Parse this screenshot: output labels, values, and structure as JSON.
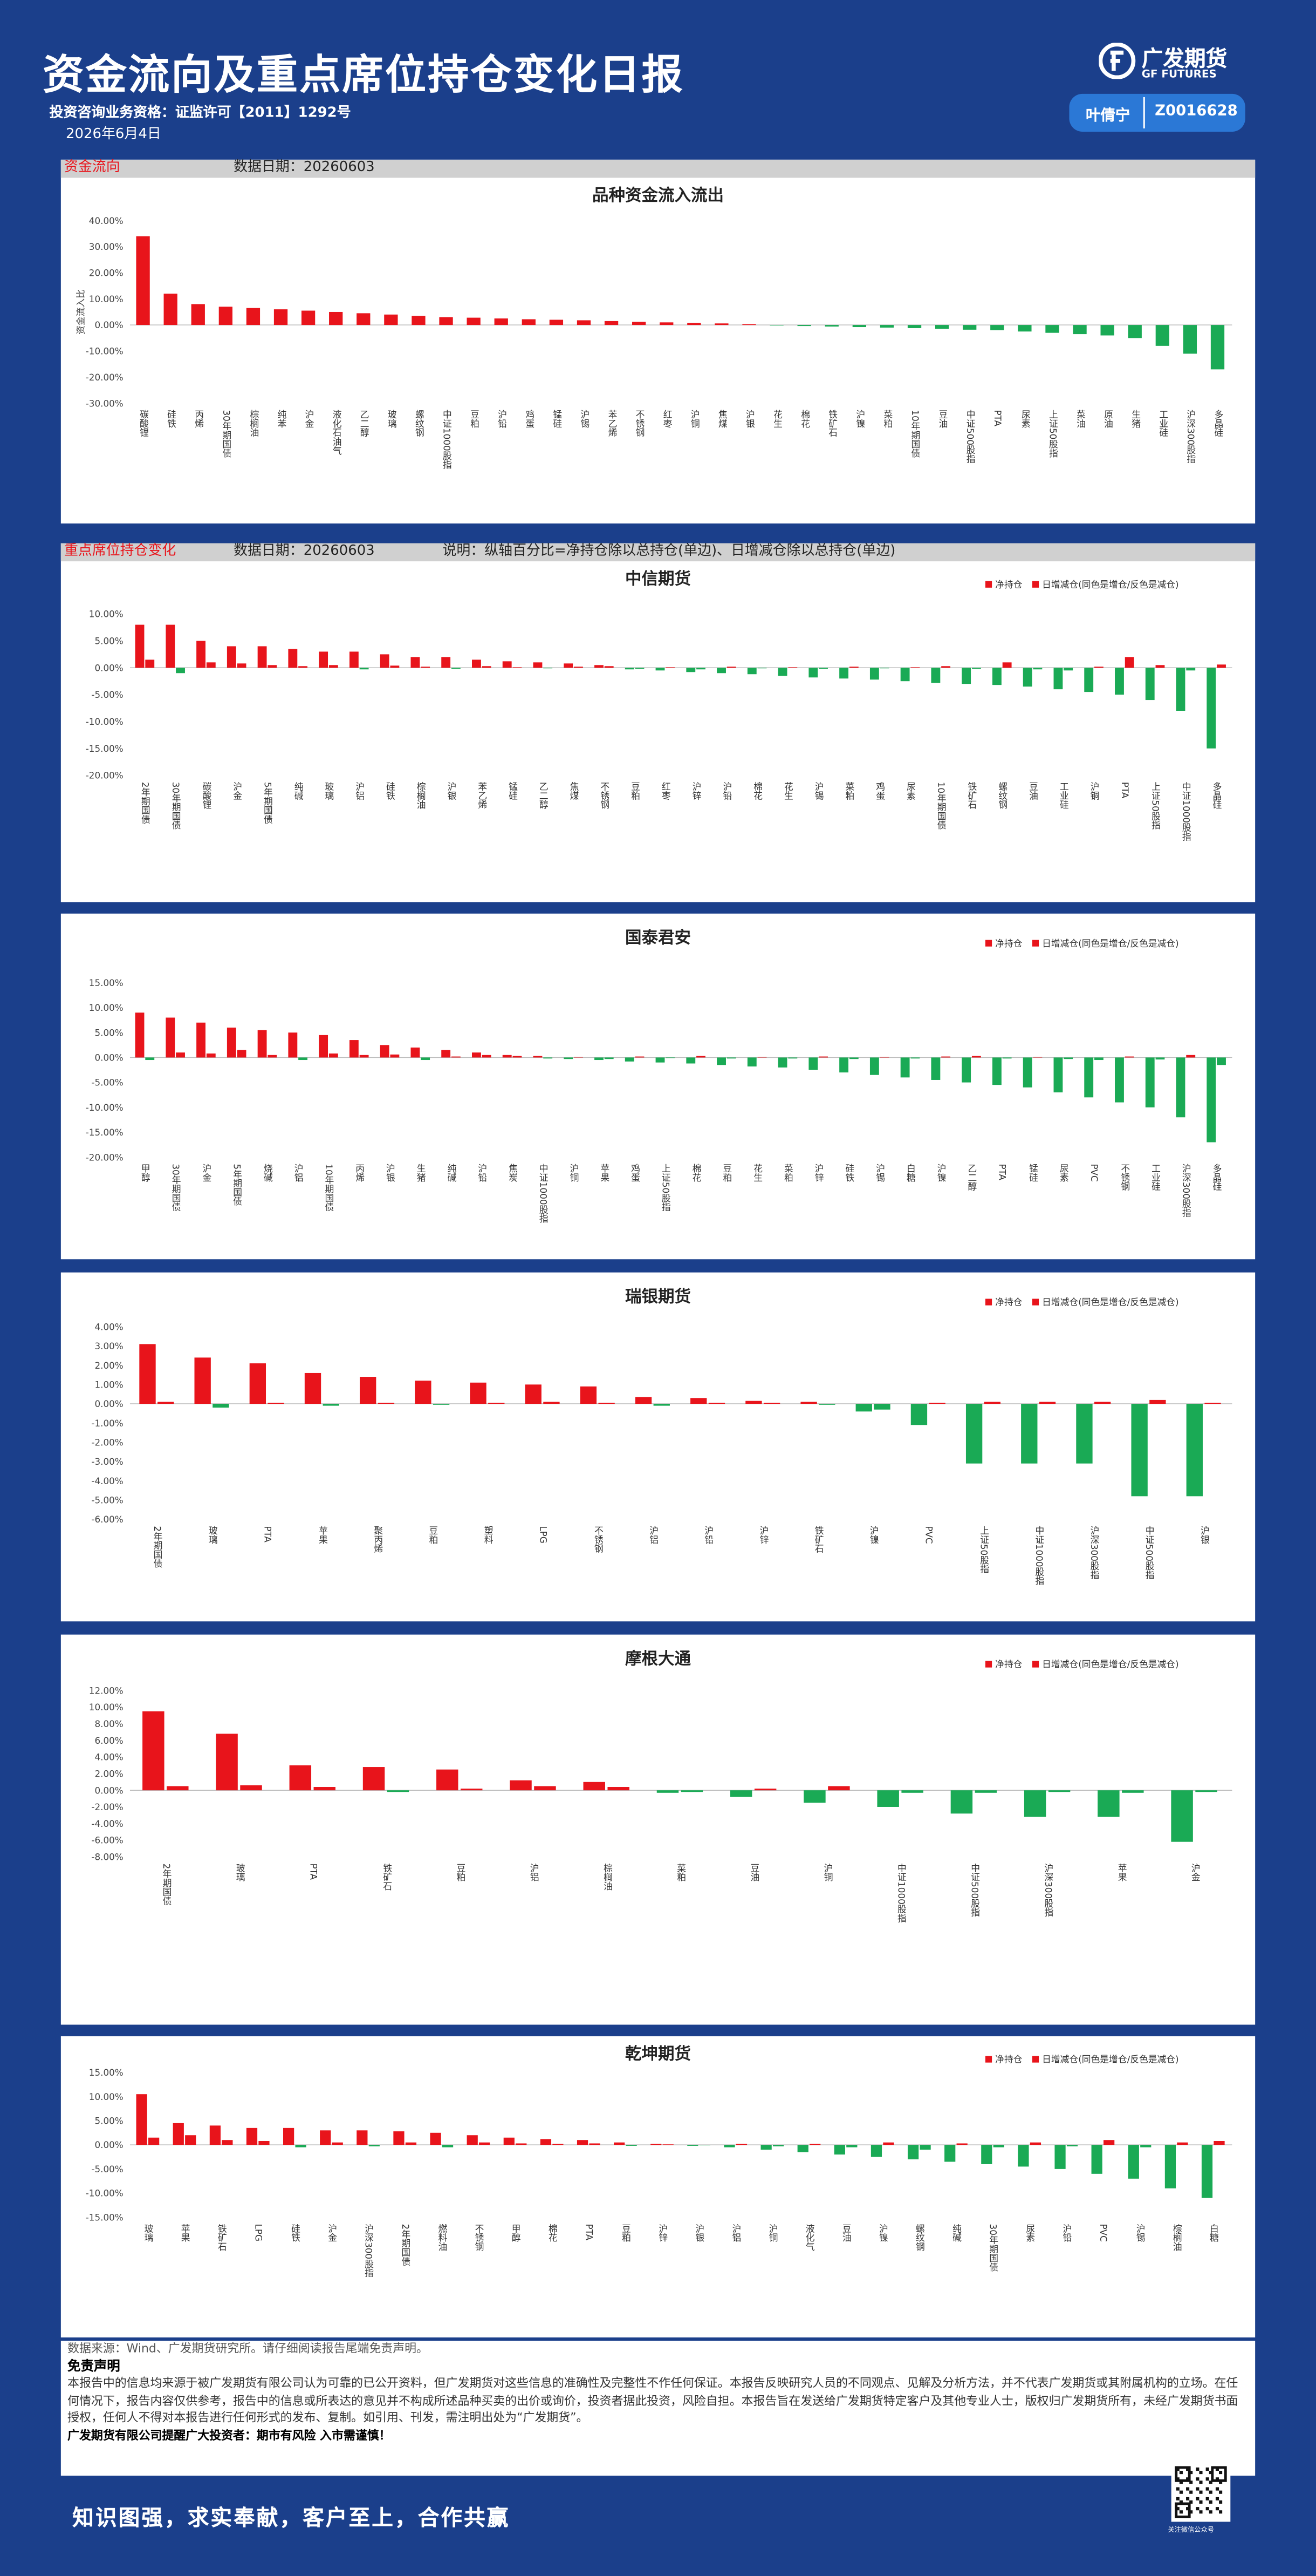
{
  "header": {
    "title": "资金流向及重点席位持仓变化日报",
    "qualification": "投资咨询业务资格：证监许可【2011】1292号",
    "date": "2026年6月4日",
    "logo": {
      "name": "广发期货",
      "en": "GF FUTURES"
    },
    "analyst": {
      "name": "叶倩宁",
      "id": "Z0016628"
    }
  },
  "sections": [
    {
      "title": "资金流向",
      "date": "数据日期：20260603"
    },
    {
      "title": "重点席位持仓变化",
      "date": "数据日期：20260603",
      "note": "说明：纵轴百分比=净持仓除以总持仓(单边)、日增减仓除以总持仓(单边)"
    }
  ],
  "chart_data": [
    {
      "type": "bar",
      "title": "品种资金流入流出",
      "y_label": "资金流入比",
      "color": "#e8141b",
      "neg_color": "#1aaa55",
      "grid": false,
      "categories": [
        "碳酸锂",
        "硅铁",
        "丙烯",
        "30年期国债",
        "棕榈油",
        "纯苯",
        "沪金",
        "液化石油气",
        "乙二醇",
        "玻璃",
        "螺纹钢",
        "中证1000股指",
        "豆粕",
        "沪铅",
        "鸡蛋",
        "锰硅",
        "沪锡",
        "苯乙烯",
        "不锈钢",
        "红枣",
        "沪铜",
        "焦煤",
        "沪银",
        "花生",
        "棉花",
        "铁矿石",
        "沪镍",
        "菜粕",
        "10年期国债",
        "豆油",
        "中证500股指",
        "PTA",
        "尿素",
        "上证50股指",
        "菜油",
        "原油",
        "生猪",
        "工业硅",
        "沪深300股指",
        "多晶硅"
      ],
      "values": [
        34,
        12,
        8,
        7,
        6.5,
        6,
        5.5,
        5,
        4.5,
        4,
        3.5,
        3,
        2.8,
        2.5,
        2.2,
        2,
        1.8,
        1.5,
        1.2,
        1,
        0.8,
        0.6,
        0.3,
        -0.2,
        -0.4,
        -0.6,
        -0.8,
        -1,
        -1.2,
        -1.5,
        -1.8,
        -2,
        -2.5,
        -3,
        -3.5,
        -4,
        -5,
        -8,
        -11,
        -17
      ],
      "ylim": [
        -30,
        40
      ],
      "yticks": [
        {
          "value": 40,
          "label": "40.00%"
        },
        {
          "value": 30,
          "label": "30.00%"
        },
        {
          "value": 20,
          "label": "20.00%"
        },
        {
          "value": 10,
          "label": "10.00%"
        },
        {
          "value": 0,
          "label": "0.00%"
        },
        {
          "value": -10,
          "label": "-10.00%"
        },
        {
          "value": -20,
          "label": "-20.00%"
        },
        {
          "value": -30,
          "label": "-30.00%"
        }
      ]
    },
    {
      "type": "bar",
      "title": "中信期货",
      "legend": "top-right",
      "grid": false,
      "categories": [
        "2年期国债",
        "30年期国债",
        "碳酸锂",
        "沪金",
        "5年期国债",
        "纯碱",
        "玻璃",
        "沪铝",
        "硅铁",
        "棕榈油",
        "沪银",
        "苯乙烯",
        "锰硅",
        "乙二醇",
        "焦煤",
        "不锈钢",
        "豆粕",
        "红枣",
        "沪锌",
        "沪铅",
        "棉花",
        "花生",
        "沪锡",
        "菜粕",
        "鸡蛋",
        "尿素",
        "10年期国债",
        "铁矿石",
        "螺纹钢",
        "豆油",
        "工业硅",
        "沪铜",
        "PTA",
        "上证50股指",
        "中证1000股指",
        "多晶硅"
      ],
      "series": [
        {
          "name": "净持仓",
          "color": "#e8141b",
          "neg_color": "#1aaa55",
          "values": [
            8,
            8,
            5,
            4,
            4,
            3.5,
            3,
            3,
            2.5,
            2,
            2,
            1.5,
            1.2,
            1,
            0.8,
            0.5,
            -0.3,
            -0.5,
            -0.8,
            -1,
            -1.2,
            -1.5,
            -1.8,
            -2,
            -2.2,
            -2.5,
            -2.8,
            -3,
            -3.2,
            -3.5,
            -4,
            -4.5,
            -5,
            -6,
            -8,
            -15
          ]
        },
        {
          "name": "日增减仓(同色是增仓/反色是减仓)",
          "color": "#e8141b",
          "neg_color": "#1aaa55",
          "values": [
            1.5,
            -1,
            1,
            0.8,
            0.5,
            0.3,
            0.5,
            -0.3,
            0.4,
            0.2,
            -0.2,
            0.3,
            0.1,
            -0.1,
            0.2,
            0.3,
            -0.2,
            0.1,
            -0.3,
            0.2,
            -0.1,
            0.1,
            -0.2,
            0.2,
            -0.1,
            0.1,
            0.3,
            -0.2,
            1,
            -0.3,
            -0.5,
            0.2,
            2,
            0.5,
            -0.5,
            0.6
          ]
        }
      ],
      "ylim": [
        -20,
        10
      ],
      "yticks": [
        {
          "value": 10,
          "label": "10.00%"
        },
        {
          "value": 5,
          "label": "5.00%"
        },
        {
          "value": 0,
          "label": "0.00%"
        },
        {
          "value": -5,
          "label": "-5.00%"
        },
        {
          "value": -10,
          "label": "-10.00%"
        },
        {
          "value": -15,
          "label": "-15.00%"
        },
        {
          "value": -20,
          "label": "-20.00%"
        }
      ]
    },
    {
      "type": "bar",
      "title": "国泰君安",
      "legend": "top-right",
      "grid": false,
      "categories": [
        "甲醇",
        "30年期国债",
        "沪金",
        "5年期国债",
        "烧碱",
        "沪铝",
        "10年期国债",
        "丙烯",
        "沪银",
        "生猪",
        "纯碱",
        "沪铅",
        "焦炭",
        "中证1000股指",
        "沪铜",
        "苹果",
        "鸡蛋",
        "上证50股指",
        "棉花",
        "豆粕",
        "花生",
        "菜粕",
        "沪锌",
        "硅铁",
        "沪锡",
        "白糖",
        "沪镍",
        "乙二醇",
        "PTA",
        "锰硅",
        "尿素",
        "PVC",
        "不锈钢",
        "工业硅",
        "沪深300股指",
        "多晶硅"
      ],
      "series": [
        {
          "name": "净持仓",
          "color": "#e8141b",
          "neg_color": "#1aaa55",
          "values": [
            9,
            8,
            7,
            6,
            5.5,
            5,
            4.5,
            3.5,
            2.5,
            2,
            1.5,
            1,
            0.5,
            0.3,
            -0.3,
            -0.5,
            -0.8,
            -1,
            -1.2,
            -1.5,
            -1.8,
            -2,
            -2.5,
            -3,
            -3.5,
            -4,
            -4.5,
            -5,
            -5.5,
            -6,
            -7,
            -8,
            -9,
            -10,
            -12,
            -17
          ]
        },
        {
          "name": "日增减仓(同色是增仓/反色是减仓)",
          "color": "#e8141b",
          "neg_color": "#1aaa55",
          "values": [
            -0.5,
            1,
            0.8,
            1.5,
            0.5,
            -0.5,
            0.8,
            0.5,
            0.6,
            -0.5,
            0.2,
            0.5,
            0.3,
            -0.2,
            0.1,
            -0.3,
            0.2,
            -0.1,
            0.3,
            -0.2,
            0.1,
            -0.2,
            0.2,
            -0.3,
            0.1,
            -0.2,
            0.2,
            0.3,
            -0.2,
            0.1,
            -0.3,
            -0.5,
            0.2,
            -0.4,
            0.5,
            -1.5
          ]
        }
      ],
      "ylim": [
        -20,
        15
      ],
      "yticks": [
        {
          "value": 15,
          "label": "15.00%"
        },
        {
          "value": 10,
          "label": "10.00%"
        },
        {
          "value": 5,
          "label": "5.00%"
        },
        {
          "value": 0,
          "label": "0.00%"
        },
        {
          "value": -5,
          "label": "-5.00%"
        },
        {
          "value": -10,
          "label": "-10.00%"
        },
        {
          "value": -15,
          "label": "-15.00%"
        },
        {
          "value": -20,
          "label": "-20.00%"
        }
      ]
    },
    {
      "type": "bar",
      "title": "瑞银期货",
      "legend": "top-right",
      "grid": false,
      "categories": [
        "2年期国债",
        "玻璃",
        "PTA",
        "苹果",
        "聚丙烯",
        "豆粕",
        "塑料",
        "LPG",
        "不锈钢",
        "沪铝",
        "沪铅",
        "沪锌",
        "铁矿石",
        "沪镍",
        "PVC",
        "上证50股指",
        "中证1000股指",
        "沪深300股指",
        "中证500股指",
        "沪银"
      ],
      "series": [
        {
          "name": "净持仓",
          "color": "#e8141b",
          "neg_color": "#1aaa55",
          "values": [
            3.1,
            2.4,
            2.1,
            1.6,
            1.4,
            1.2,
            1.1,
            1,
            0.9,
            0.35,
            0.3,
            0.15,
            0.1,
            -0.4,
            -1.1,
            -3.1,
            -3.1,
            -3.1,
            -4.8,
            -4.8
          ]
        },
        {
          "name": "日增减仓(同色是增仓/反色是减仓)",
          "color": "#e8141b",
          "neg_color": "#1aaa55",
          "values": [
            0.1,
            -0.2,
            0.05,
            -0.1,
            0.05,
            -0.05,
            0.05,
            0.1,
            0.05,
            -0.1,
            0.05,
            0.05,
            -0.05,
            -0.3,
            0.05,
            0.1,
            0.1,
            0.1,
            0.2,
            0.05
          ]
        }
      ],
      "ylim": [
        -6,
        4
      ],
      "yticks": [
        {
          "value": 4,
          "label": "4.00%"
        },
        {
          "value": 3,
          "label": "3.00%"
        },
        {
          "value": 2,
          "label": "2.00%"
        },
        {
          "value": 1,
          "label": "1.00%"
        },
        {
          "value": 0,
          "label": "0.00%"
        },
        {
          "value": -1,
          "label": "-1.00%"
        },
        {
          "value": -2,
          "label": "-2.00%"
        },
        {
          "value": -3,
          "label": "-3.00%"
        },
        {
          "value": -4,
          "label": "-4.00%"
        },
        {
          "value": -5,
          "label": "-5.00%"
        },
        {
          "value": -6,
          "label": "-6.00%"
        }
      ]
    },
    {
      "type": "bar",
      "title": "摩根大通",
      "legend": "top-right",
      "grid": false,
      "categories": [
        "2年期国债",
        "玻璃",
        "PTA",
        "铁矿石",
        "豆粕",
        "沪铝",
        "棕榈油",
        "菜粕",
        "豆油",
        "沪铜",
        "中证1000股指",
        "中证500股指",
        "沪深300股指",
        "苹果",
        "沪金"
      ],
      "series": [
        {
          "name": "净持仓",
          "color": "#e8141b",
          "neg_color": "#1aaa55",
          "values": [
            9.5,
            6.8,
            3,
            2.8,
            2.5,
            1.2,
            1,
            -0.3,
            -0.8,
            -1.5,
            -2,
            -2.8,
            -3.2,
            -3.2,
            -6.2
          ]
        },
        {
          "name": "日增减仓(同色是增仓/反色是减仓)",
          "color": "#e8141b",
          "neg_color": "#1aaa55",
          "values": [
            0.5,
            0.6,
            0.4,
            -0.2,
            0.2,
            0.5,
            0.4,
            -0.2,
            0.2,
            0.5,
            -0.3,
            -0.3,
            -0.2,
            -0.3,
            -0.2
          ]
        }
      ],
      "ylim": [
        -8,
        12
      ],
      "yticks": [
        {
          "value": 12,
          "label": "12.00%"
        },
        {
          "value": 10,
          "label": "10.00%"
        },
        {
          "value": 8,
          "label": "8.00%"
        },
        {
          "value": 6,
          "label": "6.00%"
        },
        {
          "value": 4,
          "label": "4.00%"
        },
        {
          "value": 2,
          "label": "2.00%"
        },
        {
          "value": 0,
          "label": "0.00%"
        },
        {
          "value": -2,
          "label": "-2.00%"
        },
        {
          "value": -4,
          "label": "-4.00%"
        },
        {
          "value": -6,
          "label": "-6.00%"
        },
        {
          "value": -8,
          "label": "-8.00%"
        }
      ]
    },
    {
      "type": "bar",
      "title": "乾坤期货",
      "legend": "top-right",
      "grid": false,
      "categories": [
        "玻璃",
        "苹果",
        "铁矿石",
        "LPG",
        "硅铁",
        "沪金",
        "沪深300股指",
        "2年期国债",
        "燃料油",
        "不锈钢",
        "甲醇",
        "棉花",
        "PTA",
        "豆粕",
        "沪锌",
        "沪银",
        "沪铝",
        "沪铜",
        "液化气",
        "豆油",
        "沪镍",
        "螺纹钢",
        "纯碱",
        "30年期国债",
        "尿素",
        "沪铅",
        "PVC",
        "沪锡",
        "棕榈油",
        "白糖"
      ],
      "series": [
        {
          "name": "净持仓",
          "color": "#e8141b",
          "neg_color": "#1aaa55",
          "values": [
            10.5,
            4.5,
            4,
            3.5,
            3.5,
            3,
            3,
            2.8,
            2.5,
            2,
            1.5,
            1.2,
            1,
            0.5,
            0.2,
            -0.2,
            -0.5,
            -1,
            -1.5,
            -2,
            -2.5,
            -3,
            -3.5,
            -4,
            -4.5,
            -5,
            -6,
            -7,
            -9,
            -11
          ]
        },
        {
          "name": "日增减仓(同色是增仓/反色是减仓)",
          "color": "#e8141b",
          "neg_color": "#1aaa55",
          "values": [
            1.5,
            2,
            1,
            0.8,
            -0.5,
            0.5,
            -0.3,
            0.5,
            -0.5,
            0.5,
            0.3,
            0.2,
            0.3,
            -0.2,
            0.1,
            -0.1,
            0.2,
            -0.3,
            0.2,
            -0.5,
            0.5,
            -1,
            0.3,
            -0.5,
            0.5,
            -0.3,
            1,
            -0.5,
            0.5,
            0.8
          ]
        }
      ],
      "ylim": [
        -15,
        15
      ],
      "yticks": [
        {
          "value": 15,
          "label": "15.00%"
        },
        {
          "value": 10,
          "label": "10.00%"
        },
        {
          "value": 5,
          "label": "5.00%"
        },
        {
          "value": 0,
          "label": "0.00%"
        },
        {
          "value": -5,
          "label": "-5.00%"
        },
        {
          "value": -10,
          "label": "-10.00%"
        },
        {
          "value": -15,
          "label": "-15.00%"
        }
      ]
    }
  ],
  "footer": {
    "source": "数据来源：Wind、广发期货研究所。请仔细阅读报告尾端免责声明。",
    "disclaimer_title": "免责声明",
    "disclaimer": "本报告中的信息均来源于被广发期货有限公司认为可靠的已公开资料，但广发期货对这些信息的准确性及完整性不作任何保证。本报告反映研究人员的不同观点、见解及分析方法，并不代表广发期货或其附属机构的立场。在任何情况下，报告内容仅供参考，报告中的信息或所表达的意见并不构成所述品种买卖的出价或询价，投资者据此投资，风险自担。本报告旨在发送给广发期货特定客户及其他专业人士，版权归广发期货所有，未经广发期货书面授权，任何人不得对本报告进行任何形式的发布、复制。如引用、刊发，需注明出处为“广发期货”。",
    "reminder": "广发期货有限公司提醒广大投资者：期市有风险 入市需谨慎！",
    "slogan": "知识图强，求实奉献，客户至上，合作共赢",
    "qr_caption": "关注微信公众号"
  }
}
